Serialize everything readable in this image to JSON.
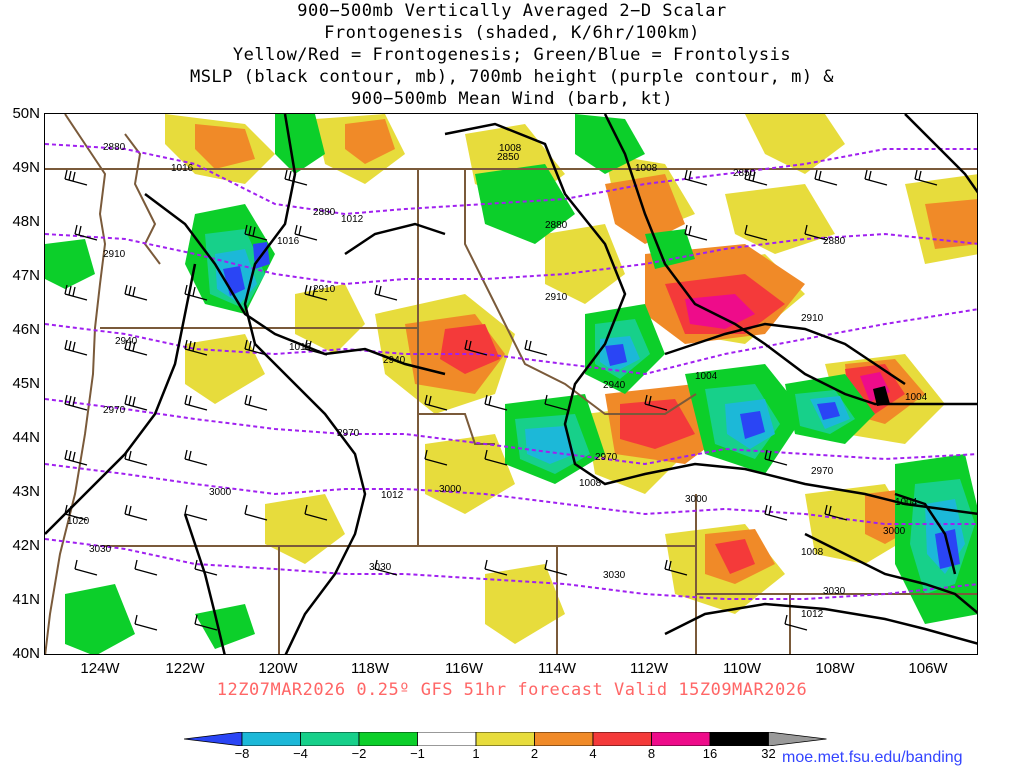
{
  "title_lines": [
    "900−500mb Vertically Averaged 2−D Scalar",
    "Frontogenesis (shaded, K/6hr/100km)",
    "Yellow/Red = Frontogenesis;  Green/Blue = Frontolysis",
    "MSLP (black contour, mb), 700mb height (purple contour, m) &",
    "900−500mb Mean Wind (barb, kt)"
  ],
  "lat_labels": [
    "50N",
    "49N",
    "48N",
    "47N",
    "46N",
    "45N",
    "44N",
    "43N",
    "42N",
    "41N",
    "40N"
  ],
  "lon_labels": [
    "124W",
    "122W",
    "120W",
    "118W",
    "116W",
    "114W",
    "112W",
    "110W",
    "108W",
    "106W"
  ],
  "footer": "12Z07MAR2026 0.25º GFS 51hr forecast Valid 15Z09MAR2026",
  "credit": "moe.met.fsu.edu/banding",
  "colorbar": {
    "labels": [
      "−8",
      "−4",
      "−2",
      "−1",
      "1",
      "2",
      "4",
      "8",
      "16",
      "32"
    ],
    "colors": [
      "#2a45f5",
      "#1cb8d8",
      "#17d08a",
      "#0ccf2a",
      "#ffffff",
      "#e7dc3c",
      "#f08a28",
      "#f43a3a",
      "#ee0c8a",
      "#000000",
      "#9a9a9a"
    ]
  },
  "field_colors": {
    "frontolysis_strong": "#2a45f5",
    "frontolysis_mod": "#1cb8d8",
    "frontolysis_weak": "#17d08a",
    "frontolysis_light": "#0ccf2a",
    "frontogenesis_light": "#e7dc3c",
    "frontogenesis_weak": "#f08a28",
    "frontogenesis_mod": "#f43a3a",
    "frontogenesis_strong": "#ee0c8a",
    "frontogenesis_extreme": "#000000",
    "mslp_contour": "#000000",
    "height_contour": "#a020f0",
    "borders": "#7a5a3a"
  },
  "height_labels": [
    "2850",
    "2850",
    "2880",
    "2880",
    "2880",
    "2880",
    "2910",
    "2910",
    "2910",
    "2910",
    "2940",
    "2940",
    "2940",
    "2970",
    "2970",
    "2970",
    "2970",
    "3000",
    "3000",
    "3000",
    "3000",
    "3030",
    "3030",
    "3030",
    "3030"
  ],
  "mslp_labels": [
    "1008",
    "1008",
    "1016",
    "1016",
    "1016",
    "1012",
    "1008",
    "1004",
    "1004",
    "1004",
    "1008",
    "1012",
    "1012",
    "1020"
  ]
}
